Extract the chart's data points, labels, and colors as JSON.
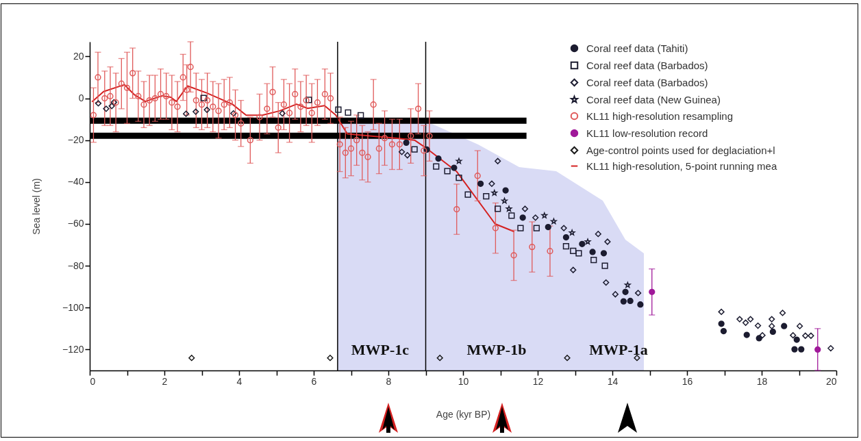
{
  "chart_data": {
    "type": "scatter",
    "xlabel": "Age (kyr BP)",
    "ylabel": "Sea level (m)",
    "xlim": [
      0,
      20
    ],
    "ylim": [
      -130,
      27
    ],
    "xticks": [
      0,
      {
        "value": 1,
        "label": null
      },
      2,
      {
        "value": 3,
        "label": null
      },
      4,
      {
        "value": 5,
        "label": null
      },
      6,
      {
        "value": 7,
        "label": null
      },
      8,
      {
        "value": 9,
        "label": null
      },
      10,
      {
        "value": 11,
        "label": null
      },
      12,
      {
        "value": 13,
        "label": null
      },
      14,
      {
        "value": 15,
        "label": null
      },
      16,
      {
        "value": 17,
        "label": null
      },
      18,
      {
        "value": 19,
        "label": null
      },
      20
    ],
    "yticks": [
      20,
      0,
      -20,
      -40,
      -60,
      -80,
      -100,
      -120
    ],
    "legend": "top right",
    "ref_lines": [
      {
        "axis": "x",
        "value": 6.64,
        "label": null,
        "color": "#000000"
      },
      {
        "axis": "x",
        "value": 9.0,
        "label": null,
        "color": "#000000"
      }
    ],
    "annotations": [
      "MWP-1c",
      "MWP-1b",
      "MWP-1a"
    ],
    "series": [
      {
        "type": "line",
        "color": "#000000",
        "x": [
          0,
          11.7
        ],
        "values": [
          -10.7,
          -10.7
        ]
      },
      {
        "type": "line",
        "color": "#000000",
        "x": [
          0,
          11.7
        ],
        "values": [
          -17.9,
          -17.9
        ]
      },
      {
        "name": "Coral reef data (Tahiti)",
        "marker": "circle",
        "color": "#1c1c30",
        "x": [
          8.48,
          9.03,
          9.34,
          9.76,
          10.47,
          11.14,
          11.6,
          12.28,
          12.76,
          13.19,
          13.47,
          13.77,
          14.35,
          14.48,
          14.3,
          14.75,
          16.92,
          16.98,
          17.6,
          17.93,
          18.3,
          18.6,
          18.94,
          18.88,
          19.06
        ],
        "values": [
          -21.2,
          -24.5,
          -28.8,
          -33.2,
          -40.8,
          -44,
          -57,
          -61.5,
          -66.4,
          -69.6,
          -73.4,
          -74,
          -92.5,
          -96.8,
          -97,
          -98.5,
          -107.7,
          -111.2,
          -113,
          -114.6,
          -111.5,
          -108.8,
          -115.3,
          -119.9,
          -119.9
        ]
      },
      {
        "name": "Coral reef data (Barbados)",
        "marker": "square",
        "color": "#1c1c30",
        "x": [
          3.05,
          5.87,
          6.66,
          6.92,
          7.26,
          8.7,
          9.28,
          9.58,
          9.89,
          10.13,
          10.62,
          10.93,
          11.3,
          11.54,
          11.97,
          12.76,
          12.95,
          13.1,
          13.5,
          13.8
        ],
        "values": [
          0.1,
          -0.8,
          -5.4,
          -6.8,
          -8.1,
          -24.4,
          -32.6,
          -34.8,
          -38,
          -46,
          -46.8,
          -52.8,
          -56,
          -62,
          -62,
          -70.7,
          -72.9,
          -74,
          -77.2,
          -80
        ]
      },
      {
        "name": "Coral reef data (Barbados)",
        "marker": "diamond",
        "color": "#1c1c30",
        "x": [
          0.23,
          0.44,
          0.59,
          0.65,
          2.58,
          2.84,
          3.14,
          3.85,
          5.16,
          8.36,
          8.51,
          10.93,
          10.77,
          11.66,
          11.94,
          12.7,
          13.62,
          13.87,
          12.95,
          13.83,
          14.08,
          14.69,
          16.92,
          17.41,
          17.57,
          17.7,
          17.9,
          18.02,
          18.27,
          18.27,
          18.56,
          19.02,
          18.84,
          19.17,
          19.32,
          19.85
        ],
        "values": [
          -2.4,
          -5,
          -3.7,
          -1.9,
          -7.4,
          -6.4,
          -5.5,
          -7.2,
          -7.2,
          -25.6,
          -27.2,
          -30,
          -40.8,
          -52.8,
          -57,
          -62,
          -64.8,
          -68.5,
          -82,
          -88,
          -93.6,
          -93,
          -102,
          -105.5,
          -107.2,
          -105.5,
          -108.6,
          -113.2,
          -105.5,
          -108.8,
          -102.5,
          -108.8,
          -113.2,
          -113.4,
          -113.4,
          -119.4
        ]
      },
      {
        "name": "Coral reef data (New Guinea)",
        "marker": "star",
        "color": "#1c1c30",
        "x": [
          9.89,
          10.84,
          11.11,
          11.23,
          12.18,
          12.43,
          12.92,
          13.34,
          14.41
        ],
        "values": [
          -30,
          -45.2,
          -49,
          -52.8,
          -56,
          -58.8,
          -64.2,
          -68.5,
          -89.2
        ]
      },
      {
        "name": "KL11 high-resolution resampling",
        "marker": "circle",
        "color": "#e05a5a",
        "x": [
          0.1,
          0.22,
          0.4,
          0.55,
          0.7,
          0.85,
          1.0,
          1.15,
          1.3,
          1.45,
          1.6,
          1.75,
          1.9,
          2.05,
          2.2,
          2.35,
          2.5,
          2.6,
          2.7,
          2.85,
          3.0,
          3.15,
          3.3,
          3.45,
          3.6,
          3.75,
          3.9,
          4.05,
          4.3,
          4.55,
          4.75,
          4.9,
          5.05,
          5.2,
          5.35,
          5.5,
          5.65,
          5.8,
          5.95,
          6.1,
          6.3,
          6.45,
          6.7,
          6.85,
          7.0,
          7.15,
          7.3,
          7.45,
          7.6,
          7.75,
          7.9,
          8.1,
          8.3,
          8.6,
          8.8,
          8.95,
          9.1,
          9.83,
          10.39,
          10.87,
          11.36,
          11.85,
          12.33
        ],
        "values": [
          -8,
          10,
          0,
          1,
          -2,
          7,
          5,
          12,
          1,
          -3,
          -1,
          0,
          2,
          1,
          -2,
          -4,
          10,
          4,
          15,
          -1,
          -3,
          -1,
          -4,
          -6,
          -3,
          -2,
          -8,
          -12,
          -20,
          -9,
          -5,
          3,
          -14,
          -3,
          -7,
          2,
          -4,
          -1,
          -7,
          -2,
          2,
          0,
          -22,
          -26,
          -24,
          -20,
          -26,
          -28,
          -3,
          -24,
          -19,
          -22,
          -22,
          -18,
          -5,
          -25,
          -18,
          -53,
          -37,
          -62,
          -75,
          -71,
          -73
        ],
        "errors": [
          13,
          12,
          13,
          14,
          14,
          12,
          17,
          12,
          12,
          11,
          12,
          11,
          12,
          11,
          13,
          12,
          11,
          12,
          12,
          13,
          12,
          13,
          12,
          13,
          12,
          12,
          12,
          11,
          11,
          11,
          12,
          12,
          12,
          12,
          14,
          12,
          12,
          12,
          14,
          11,
          12,
          12,
          13,
          12,
          13,
          12,
          13,
          12,
          12,
          12,
          13,
          12,
          12,
          13,
          12,
          12,
          12,
          12,
          12,
          12,
          12,
          12,
          12
        ]
      },
      {
        "name": "KL11 low-resolution record",
        "marker": "circle",
        "color": "#a0199a",
        "x": [
          15.06,
          19.5
        ],
        "values": [
          -92.5,
          -120
        ],
        "errors": [
          11,
          10
        ]
      },
      {
        "name": "Age-control points used for deglaciation+l",
        "marker": "diamond",
        "color": "#1a1a1a",
        "x": [
          2.73,
          6.44,
          9.38,
          12.79,
          14.66
        ],
        "values": [
          -124,
          -124,
          -124,
          -124,
          -124
        ]
      },
      {
        "name": "KL11 high-resolution, 5-point running mea",
        "type": "line",
        "marker": "none",
        "color": "#d42020",
        "x": [
          0.07,
          0.37,
          0.93,
          1.19,
          1.49,
          1.94,
          2.17,
          2.32,
          2.62,
          3.14,
          3.82,
          4.19,
          4.64,
          5.09,
          5.54,
          5.84,
          6.29,
          6.59,
          6.9,
          7.5,
          8.2,
          8.7,
          9.03,
          9.83,
          10.86,
          11.36
        ],
        "values": [
          -1.5,
          3.2,
          6.5,
          1.8,
          -1.5,
          1.2,
          0.5,
          -1.5,
          5.9,
          2.5,
          -2.8,
          -8.1,
          -8,
          -6,
          -2.8,
          -4.8,
          -3.5,
          -8,
          -17,
          -18,
          -19,
          -20,
          -24,
          -35,
          -60,
          -63.6
        ]
      }
    ]
  }
}
